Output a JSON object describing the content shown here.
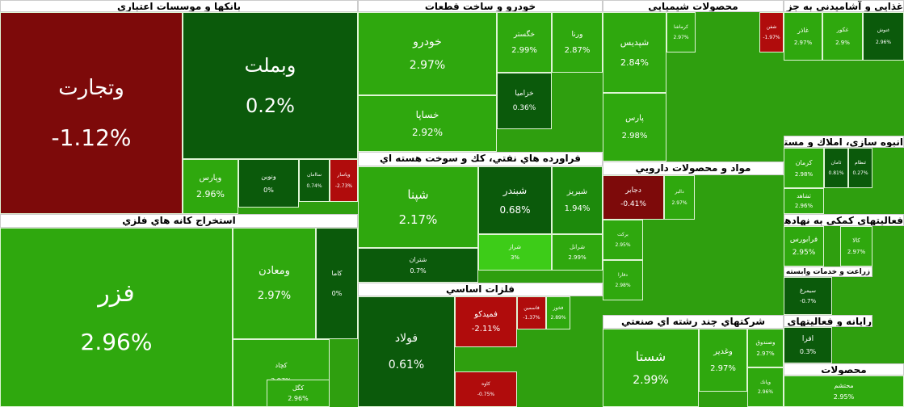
{
  "sectors": [
    {
      "title": "بانكها و موسسات اعتباري",
      "tiles": [
        {
          "symbol": "وتجارت",
          "change": "-1.12%"
        },
        {
          "symbol": "وبملت",
          "change": "0.2%"
        },
        {
          "symbol": "وپارس",
          "change": "2.96%"
        },
        {
          "symbol": "ونوین",
          "change": "0%"
        },
        {
          "symbol": "ساامان",
          "change": "0.74%"
        },
        {
          "symbol": "وپاسار",
          "change": "-2.73%"
        }
      ]
    },
    {
      "title": "استخراج كانه هاي فلزي",
      "tiles": [
        {
          "symbol": "فزر",
          "change": "2.96%"
        },
        {
          "symbol": "ومعادن",
          "change": "2.97%"
        },
        {
          "symbol": "كاما",
          "change": "0%"
        },
        {
          "symbol": "كچاد",
          "change": "2.97%"
        },
        {
          "symbol": "كگل",
          "change": "2.96%"
        }
      ]
    },
    {
      "title": "خودرو و ساخت قطعات",
      "tiles": [
        {
          "symbol": "خودرو",
          "change": "2.97%"
        },
        {
          "symbol": "خساپا",
          "change": "2.92%"
        },
        {
          "symbol": "خگستر",
          "change": "2.99%"
        },
        {
          "symbol": "ورنا",
          "change": "2.87%"
        },
        {
          "symbol": "خزامیا",
          "change": "0.36%"
        }
      ]
    },
    {
      "title": "فراورده هاي نفتي، كك و سوخت هسته اي",
      "tiles": [
        {
          "symbol": "شپنا",
          "change": "2.17%"
        },
        {
          "symbol": "شبندر",
          "change": "0.68%"
        },
        {
          "symbol": "شبریز",
          "change": "1.94%"
        },
        {
          "symbol": "شتران",
          "change": "0.7%"
        },
        {
          "symbol": "شراز",
          "change": "3%"
        },
        {
          "symbol": "شرانل",
          "change": "2.99%"
        }
      ]
    },
    {
      "title": "فلزات اساسي",
      "tiles": [
        {
          "symbol": "فولاد",
          "change": "0.61%"
        },
        {
          "symbol": "فمیدكو",
          "change": "-2.11%"
        },
        {
          "symbol": "فاسمین",
          "change": "-1.37%"
        },
        {
          "symbol": "فخوز",
          "change": "2.89%"
        },
        {
          "symbol": "كاوه",
          "change": "-0.75%"
        }
      ]
    },
    {
      "title": "محصولات شيميايي",
      "tiles": [
        {
          "symbol": "شپدیس",
          "change": "2.84%"
        },
        {
          "symbol": "پارس",
          "change": "2.98%"
        },
        {
          "symbol": "كرماشا",
          "change": "2.97%"
        },
        {
          "symbol": "شفن",
          "change": "-1.97%"
        }
      ]
    },
    {
      "title": "مواد و محصولات دارويي",
      "tiles": [
        {
          "symbol": "دجابر",
          "change": "-0.41%"
        },
        {
          "symbol": "دالبر",
          "change": "2.97%"
        },
        {
          "symbol": "بركت",
          "change": "2.95%"
        },
        {
          "symbol": "دفارا",
          "change": "2.98%"
        }
      ]
    },
    {
      "title": "شركتهاي چند رشته اي صنعتي",
      "tiles": [
        {
          "symbol": "شستا",
          "change": "2.99%"
        },
        {
          "symbol": "وغدیر",
          "change": "2.97%"
        },
        {
          "symbol": "وصندوق",
          "change": "2.97%"
        },
        {
          "symbol": "وپانك",
          "change": "2.96%"
        }
      ]
    },
    {
      "title": "غذايي و آشاميدني به جز قند و شكر",
      "tiles": [
        {
          "symbol": "غاذر",
          "change": "2.97%"
        },
        {
          "symbol": "غكور",
          "change": "2.9%"
        },
        {
          "symbol": "غنوش",
          "change": "2.96%"
        }
      ]
    },
    {
      "title": "انبوه سازي، املاك و مستغلات",
      "tiles": [
        {
          "symbol": "كرمان",
          "change": "2.98%"
        },
        {
          "symbol": "ثامان",
          "change": "0.81%"
        },
        {
          "symbol": "ثنظام",
          "change": "0.27%"
        },
        {
          "symbol": "ثشاهد",
          "change": "2.96%"
        }
      ]
    },
    {
      "title": "فعاليتهاي كمكي به نهادهاي مالي واسط",
      "tiles": [
        {
          "symbol": "فرابورس",
          "change": "2.95%"
        },
        {
          "symbol": "كالا",
          "change": "2.97%"
        }
      ]
    },
    {
      "title": "زراعت و خدمات وابسته",
      "tiles": [
        {
          "symbol": "سيمرغ",
          "change": "-0.7%"
        }
      ]
    },
    {
      "title": "رايانه و فعاليتهاي وابسته به آن",
      "tiles": [
        {
          "symbol": "افرا",
          "change": "0.3%"
        }
      ]
    },
    {
      "title": "محصولات",
      "tiles": [
        {
          "symbol": "محتشم",
          "change": "2.95%"
        }
      ]
    }
  ]
}
